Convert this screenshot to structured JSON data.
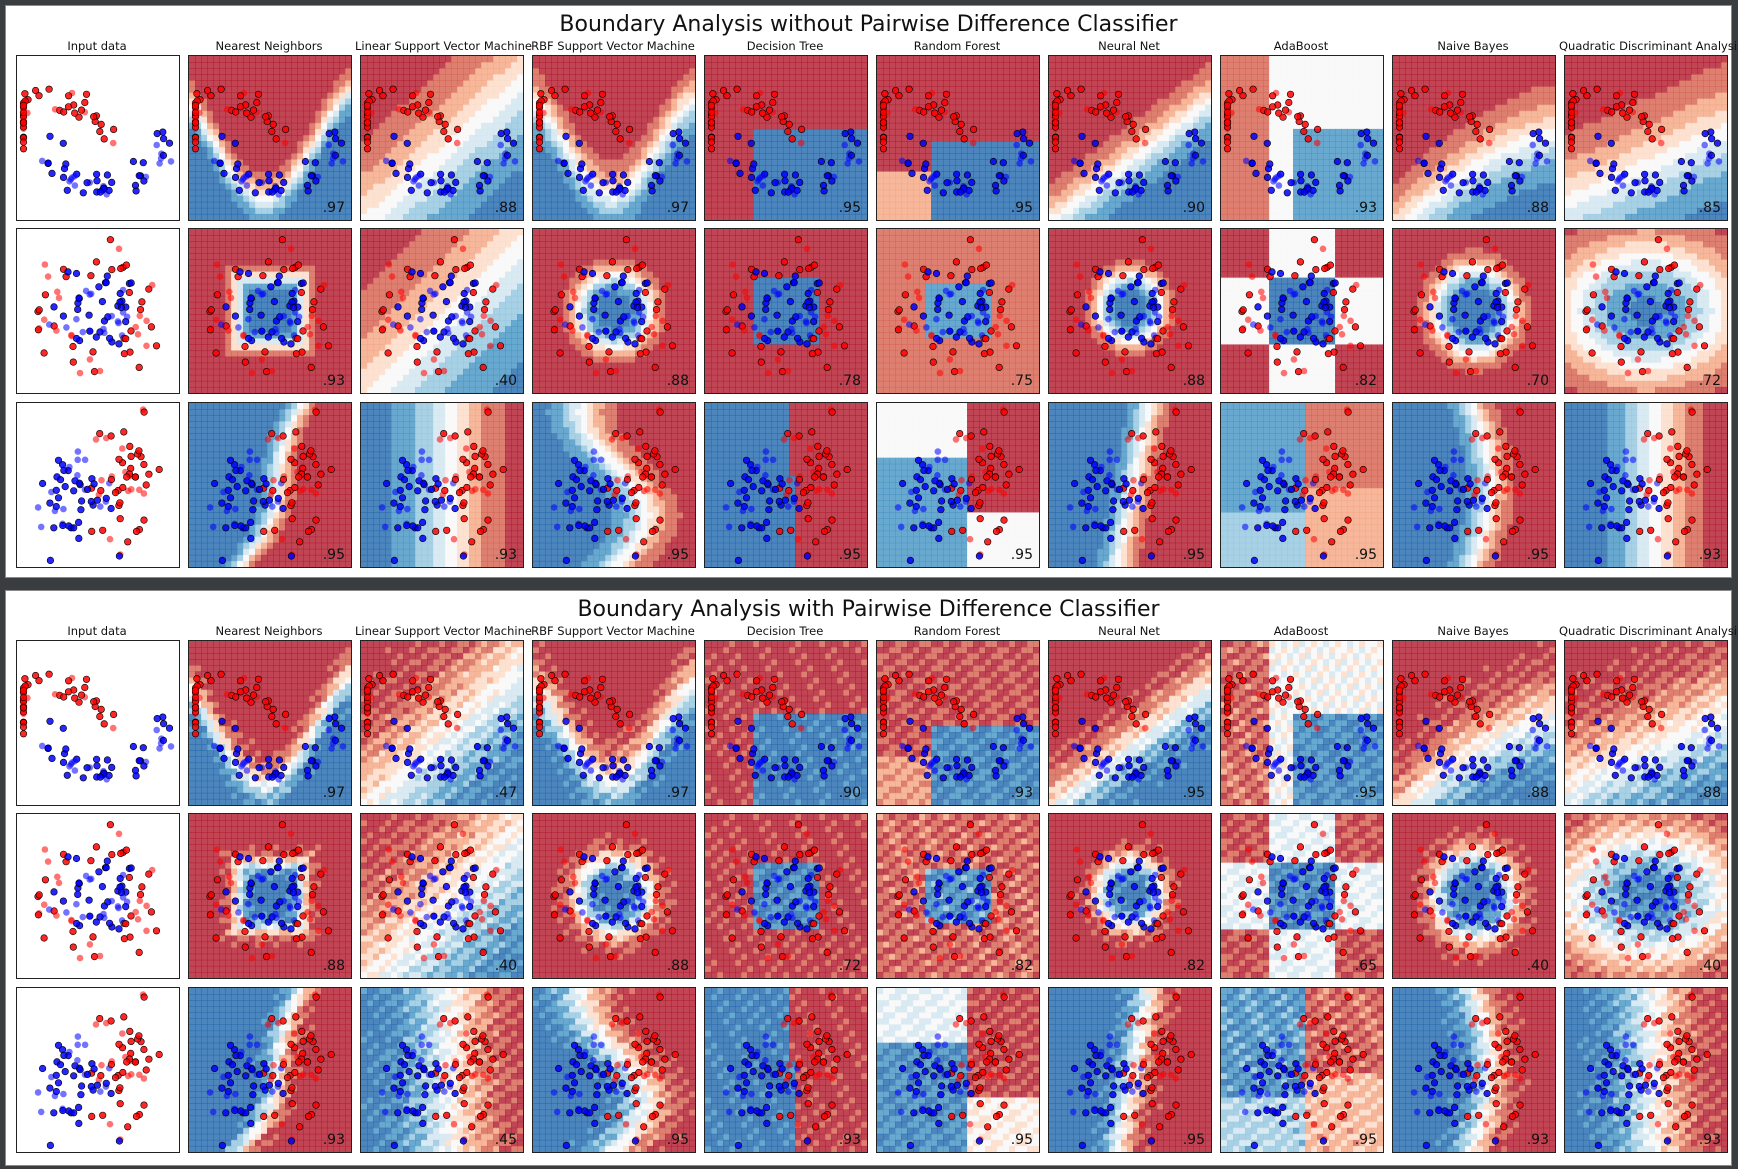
{
  "colors": {
    "red_strong": "#b2182b",
    "red_mid": "#d6604d",
    "red_light": "#f4a582",
    "red_pale": "#fddbc7",
    "neutral": "#f7f7f7",
    "blue_pale": "#d1e5f0",
    "blue_light": "#92c5de",
    "blue_mid": "#4393c3",
    "blue_strong": "#2166ac",
    "point_red": "#ff0000",
    "point_blue": "#0000ff"
  },
  "columns": [
    "Input data",
    "Nearest Neighbors",
    "Linear Support Vector Machine",
    "RBF Support Vector Machine",
    "Decision Tree",
    "Random Forest",
    "Neural Net",
    "AdaBoost",
    "Naive Bayes",
    "Quadratic Discriminant Analysis"
  ],
  "chart_data": [
    {
      "type": "heatmap",
      "title": "Boundary Analysis without Pairwise Difference Classifier",
      "datasets": [
        "moons",
        "circles",
        "linearly_separable"
      ],
      "classifiers": [
        "Nearest Neighbors",
        "Linear Support Vector Machine",
        "RBF Support Vector Machine",
        "Decision Tree",
        "Random Forest",
        "Neural Net",
        "AdaBoost",
        "Naive Bayes",
        "Quadratic Discriminant Analysis"
      ],
      "scores": [
        [
          ".97",
          ".88",
          ".97",
          ".95",
          ".95",
          ".90",
          ".93",
          ".88",
          ".85"
        ],
        [
          ".93",
          ".40",
          ".88",
          ".78",
          ".75",
          ".88",
          ".82",
          ".70",
          ".72"
        ],
        [
          ".95",
          ".93",
          ".95",
          ".95",
          ".95",
          ".95",
          ".95",
          ".95",
          ".93"
        ]
      ]
    },
    {
      "type": "heatmap",
      "title": "Boundary Analysis with Pairwise Difference Classifier",
      "datasets": [
        "moons",
        "circles",
        "linearly_separable"
      ],
      "classifiers": [
        "Nearest Neighbors",
        "Linear Support Vector Machine",
        "RBF Support Vector Machine",
        "Decision Tree",
        "Random Forest",
        "Neural Net",
        "AdaBoost",
        "Naive Bayes",
        "Quadratic Discriminant Analysis"
      ],
      "scores": [
        [
          ".97",
          ".47",
          ".97",
          ".90",
          ".93",
          ".95",
          ".95",
          ".88",
          ".88"
        ],
        [
          ".88",
          ".40",
          ".88",
          ".72",
          ".82",
          ".82",
          ".65",
          ".40",
          ".40"
        ],
        [
          ".93",
          ".45",
          ".95",
          ".93",
          ".95",
          ".95",
          ".95",
          ".93",
          ".93"
        ]
      ]
    }
  ]
}
